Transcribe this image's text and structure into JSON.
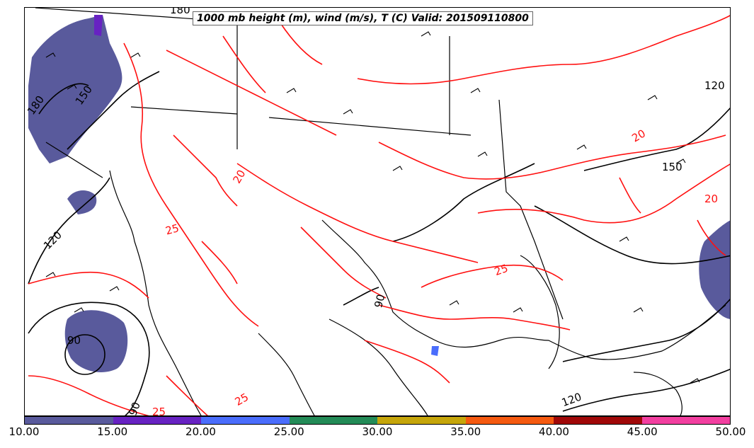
{
  "title": "1000 mb height (m), wind (m/s), T (C) Valid: 201509110800",
  "colorbar": {
    "ticks": [
      "10.00",
      "15.00",
      "20.00",
      "25.00",
      "30.00",
      "35.00",
      "40.00",
      "45.00",
      "50.00"
    ],
    "colors": [
      "#595a9c",
      "#6722c2",
      "#4a6dfc",
      "#238b57",
      "#c6a60a",
      "#f55a10",
      "#a00808",
      "#f23fa0"
    ]
  },
  "height_contour_labels": [
    "180",
    "150",
    "120",
    "90",
    "120",
    "90",
    "120",
    "150",
    "180",
    "90"
  ],
  "temperature_contour_labels": [
    "25",
    "20",
    "25",
    "20",
    "25",
    "20",
    "25"
  ],
  "colors": {
    "height_contour": "#000000",
    "temperature_contour": "#ff1010",
    "coastline": "#000000",
    "frame": "#000000"
  }
}
